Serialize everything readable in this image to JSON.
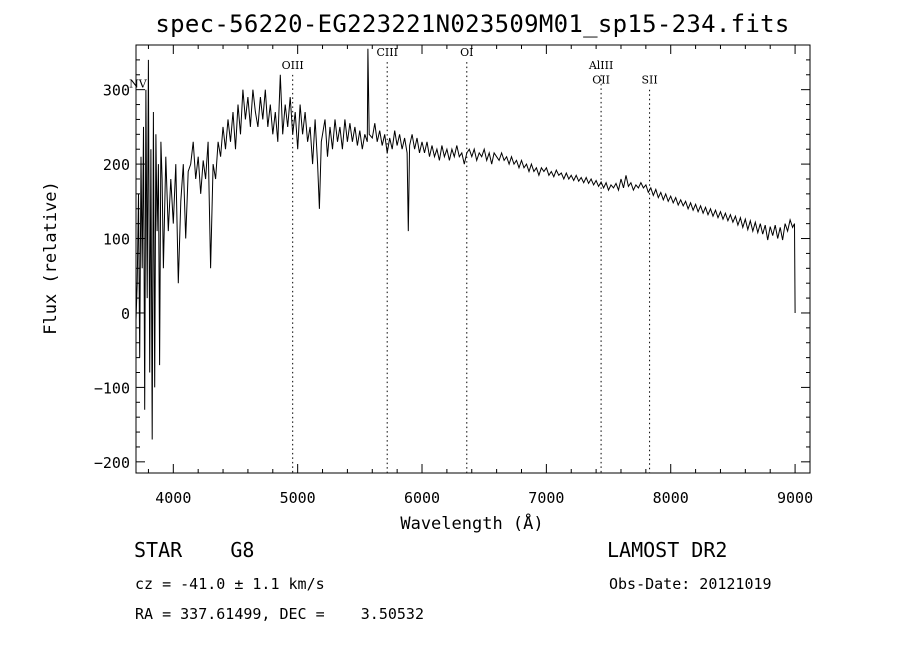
{
  "chart_data": {
    "type": "line",
    "title": "spec-56220-EG223221N023509M01_sp15-234.fits",
    "xlabel": "Wavelength (Å)",
    "ylabel": "Flux (relative)",
    "xlim": [
      3700,
      9120
    ],
    "ylim": [
      -215,
      360
    ],
    "xticks": [
      "4000",
      "5000",
      "6000",
      "7000",
      "8000",
      "9000"
    ],
    "yticks": [
      "-200",
      "-100",
      "0",
      "100",
      "200",
      "300"
    ],
    "grid": false,
    "line_markers": [
      {
        "label": "NV",
        "wavelength": 3715,
        "label_flux": 303
      },
      {
        "label": "OIII",
        "wavelength": 4960,
        "label_flux": 328
      },
      {
        "label": "CIII",
        "wavelength": 5720,
        "label_flux": 345
      },
      {
        "label": "OI",
        "wavelength": 6360,
        "label_flux": 345
      },
      {
        "label": "AlIII",
        "wavelength": 7440,
        "label_flux": 328
      },
      {
        "label": "OII",
        "wavelength": 7440,
        "label_flux": 308
      },
      {
        "label": "SII",
        "wavelength": 7830,
        "label_flux": 308
      }
    ],
    "series": [
      {
        "points": [
          [
            3700,
            -10
          ],
          [
            3710,
            40
          ],
          [
            3720,
            160
          ],
          [
            3730,
            -60
          ],
          [
            3740,
            210
          ],
          [
            3750,
            60
          ],
          [
            3760,
            250
          ],
          [
            3770,
            -130
          ],
          [
            3780,
            300
          ],
          [
            3790,
            20
          ],
          [
            3800,
            340
          ],
          [
            3810,
            -80
          ],
          [
            3820,
            220
          ],
          [
            3830,
            -170
          ],
          [
            3840,
            270
          ],
          [
            3850,
            -100
          ],
          [
            3860,
            240
          ],
          [
            3870,
            110
          ],
          [
            3880,
            200
          ],
          [
            3890,
            -70
          ],
          [
            3900,
            230
          ],
          [
            3910,
            180
          ],
          [
            3920,
            60
          ],
          [
            3940,
            210
          ],
          [
            3960,
            110
          ],
          [
            3980,
            180
          ],
          [
            4000,
            120
          ],
          [
            4020,
            200
          ],
          [
            4040,
            40
          ],
          [
            4060,
            150
          ],
          [
            4080,
            200
          ],
          [
            4100,
            100
          ],
          [
            4120,
            190
          ],
          [
            4140,
            200
          ],
          [
            4160,
            230
          ],
          [
            4180,
            180
          ],
          [
            4200,
            210
          ],
          [
            4220,
            160
          ],
          [
            4240,
            205
          ],
          [
            4260,
            180
          ],
          [
            4280,
            230
          ],
          [
            4300,
            60
          ],
          [
            4320,
            200
          ],
          [
            4340,
            180
          ],
          [
            4360,
            230
          ],
          [
            4380,
            210
          ],
          [
            4400,
            250
          ],
          [
            4420,
            220
          ],
          [
            4440,
            260
          ],
          [
            4460,
            230
          ],
          [
            4480,
            270
          ],
          [
            4500,
            220
          ],
          [
            4520,
            280
          ],
          [
            4540,
            240
          ],
          [
            4560,
            300
          ],
          [
            4580,
            260
          ],
          [
            4600,
            290
          ],
          [
            4620,
            250
          ],
          [
            4640,
            300
          ],
          [
            4660,
            270
          ],
          [
            4680,
            250
          ],
          [
            4700,
            290
          ],
          [
            4720,
            260
          ],
          [
            4740,
            300
          ],
          [
            4760,
            250
          ],
          [
            4780,
            280
          ],
          [
            4800,
            240
          ],
          [
            4820,
            270
          ],
          [
            4840,
            230
          ],
          [
            4860,
            320
          ],
          [
            4880,
            240
          ],
          [
            4900,
            280
          ],
          [
            4920,
            250
          ],
          [
            4940,
            290
          ],
          [
            4960,
            240
          ],
          [
            4980,
            270
          ],
          [
            5000,
            220
          ],
          [
            5020,
            280
          ],
          [
            5040,
            240
          ],
          [
            5060,
            270
          ],
          [
            5080,
            230
          ],
          [
            5100,
            250
          ],
          [
            5120,
            200
          ],
          [
            5140,
            260
          ],
          [
            5160,
            200
          ],
          [
            5175,
            140
          ],
          [
            5190,
            230
          ],
          [
            5220,
            260
          ],
          [
            5240,
            210
          ],
          [
            5260,
            250
          ],
          [
            5280,
            220
          ],
          [
            5300,
            260
          ],
          [
            5320,
            230
          ],
          [
            5340,
            250
          ],
          [
            5360,
            220
          ],
          [
            5380,
            260
          ],
          [
            5400,
            230
          ],
          [
            5420,
            255
          ],
          [
            5440,
            230
          ],
          [
            5460,
            250
          ],
          [
            5480,
            225
          ],
          [
            5500,
            245
          ],
          [
            5520,
            220
          ],
          [
            5540,
            240
          ],
          [
            5560,
            230
          ],
          [
            5565,
            355
          ],
          [
            5575,
            240
          ],
          [
            5600,
            235
          ],
          [
            5620,
            255
          ],
          [
            5640,
            230
          ],
          [
            5660,
            245
          ],
          [
            5680,
            225
          ],
          [
            5700,
            240
          ],
          [
            5720,
            215
          ],
          [
            5740,
            235
          ],
          [
            5760,
            220
          ],
          [
            5780,
            245
          ],
          [
            5800,
            225
          ],
          [
            5820,
            240
          ],
          [
            5840,
            220
          ],
          [
            5860,
            235
          ],
          [
            5880,
            215
          ],
          [
            5890,
            110
          ],
          [
            5900,
            225
          ],
          [
            5920,
            240
          ],
          [
            5940,
            220
          ],
          [
            5960,
            235
          ],
          [
            5980,
            215
          ],
          [
            6000,
            230
          ],
          [
            6020,
            215
          ],
          [
            6040,
            230
          ],
          [
            6060,
            210
          ],
          [
            6080,
            225
          ],
          [
            6100,
            210
          ],
          [
            6120,
            220
          ],
          [
            6140,
            205
          ],
          [
            6160,
            225
          ],
          [
            6180,
            210
          ],
          [
            6200,
            220
          ],
          [
            6220,
            205
          ],
          [
            6240,
            220
          ],
          [
            6260,
            210
          ],
          [
            6280,
            225
          ],
          [
            6300,
            210
          ],
          [
            6320,
            215
          ],
          [
            6340,
            200
          ],
          [
            6360,
            215
          ],
          [
            6380,
            220
          ],
          [
            6400,
            210
          ],
          [
            6420,
            220
          ],
          [
            6440,
            205
          ],
          [
            6460,
            215
          ],
          [
            6480,
            210
          ],
          [
            6500,
            220
          ],
          [
            6520,
            205
          ],
          [
            6540,
            215
          ],
          [
            6560,
            200
          ],
          [
            6580,
            215
          ],
          [
            6600,
            210
          ],
          [
            6620,
            205
          ],
          [
            6640,
            215
          ],
          [
            6660,
            205
          ],
          [
            6680,
            210
          ],
          [
            6700,
            200
          ],
          [
            6720,
            210
          ],
          [
            6740,
            200
          ],
          [
            6760,
            205
          ],
          [
            6780,
            195
          ],
          [
            6800,
            205
          ],
          [
            6820,
            195
          ],
          [
            6840,
            200
          ],
          [
            6860,
            190
          ],
          [
            6880,
            200
          ],
          [
            6900,
            190
          ],
          [
            6920,
            195
          ],
          [
            6940,
            185
          ],
          [
            6960,
            195
          ],
          [
            6980,
            190
          ],
          [
            7000,
            195
          ],
          [
            7020,
            185
          ],
          [
            7040,
            190
          ],
          [
            7060,
            183
          ],
          [
            7080,
            192
          ],
          [
            7100,
            185
          ],
          [
            7120,
            188
          ],
          [
            7140,
            180
          ],
          [
            7160,
            188
          ],
          [
            7180,
            180
          ],
          [
            7200,
            185
          ],
          [
            7220,
            178
          ],
          [
            7240,
            185
          ],
          [
            7260,
            177
          ],
          [
            7280,
            182
          ],
          [
            7300,
            175
          ],
          [
            7320,
            182
          ],
          [
            7340,
            174
          ],
          [
            7360,
            180
          ],
          [
            7380,
            172
          ],
          [
            7400,
            178
          ],
          [
            7420,
            170
          ],
          [
            7440,
            176
          ],
          [
            7460,
            168
          ],
          [
            7480,
            175
          ],
          [
            7500,
            165
          ],
          [
            7520,
            172
          ],
          [
            7540,
            168
          ],
          [
            7560,
            174
          ],
          [
            7580,
            165
          ],
          [
            7600,
            180
          ],
          [
            7620,
            168
          ],
          [
            7640,
            185
          ],
          [
            7660,
            170
          ],
          [
            7680,
            175
          ],
          [
            7700,
            165
          ],
          [
            7720,
            172
          ],
          [
            7740,
            168
          ],
          [
            7760,
            175
          ],
          [
            7780,
            168
          ],
          [
            7800,
            172
          ],
          [
            7820,
            162
          ],
          [
            7840,
            168
          ],
          [
            7860,
            158
          ],
          [
            7880,
            166
          ],
          [
            7900,
            155
          ],
          [
            7920,
            162
          ],
          [
            7940,
            152
          ],
          [
            7960,
            160
          ],
          [
            7980,
            150
          ],
          [
            8000,
            157
          ],
          [
            8020,
            148
          ],
          [
            8040,
            155
          ],
          [
            8060,
            145
          ],
          [
            8080,
            152
          ],
          [
            8100,
            144
          ],
          [
            8120,
            150
          ],
          [
            8140,
            140
          ],
          [
            8160,
            148
          ],
          [
            8180,
            138
          ],
          [
            8200,
            146
          ],
          [
            8220,
            136
          ],
          [
            8240,
            144
          ],
          [
            8260,
            134
          ],
          [
            8280,
            142
          ],
          [
            8300,
            132
          ],
          [
            8320,
            140
          ],
          [
            8340,
            130
          ],
          [
            8360,
            138
          ],
          [
            8380,
            128
          ],
          [
            8400,
            136
          ],
          [
            8420,
            126
          ],
          [
            8440,
            134
          ],
          [
            8460,
            124
          ],
          [
            8480,
            132
          ],
          [
            8500,
            122
          ],
          [
            8520,
            130
          ],
          [
            8540,
            118
          ],
          [
            8560,
            128
          ],
          [
            8580,
            115
          ],
          [
            8600,
            126
          ],
          [
            8620,
            112
          ],
          [
            8640,
            124
          ],
          [
            8660,
            110
          ],
          [
            8680,
            122
          ],
          [
            8700,
            108
          ],
          [
            8720,
            120
          ],
          [
            8740,
            106
          ],
          [
            8760,
            118
          ],
          [
            8780,
            98
          ],
          [
            8800,
            116
          ],
          [
            8820,
            104
          ],
          [
            8840,
            118
          ],
          [
            8860,
            100
          ],
          [
            8880,
            115
          ],
          [
            8900,
            98
          ],
          [
            8920,
            120
          ],
          [
            8940,
            110
          ],
          [
            8960,
            125
          ],
          [
            8980,
            115
          ],
          [
            8995,
            120
          ],
          [
            9000,
            0
          ]
        ]
      }
    ]
  },
  "info": {
    "object_class": "STAR    G8",
    "survey": "LAMOST DR2",
    "cz": "cz = -41.0 ± 1.1 km/s",
    "obs_date": "Obs-Date: 20121019",
    "radec": "RA = 337.61499, DEC =    3.50532"
  }
}
